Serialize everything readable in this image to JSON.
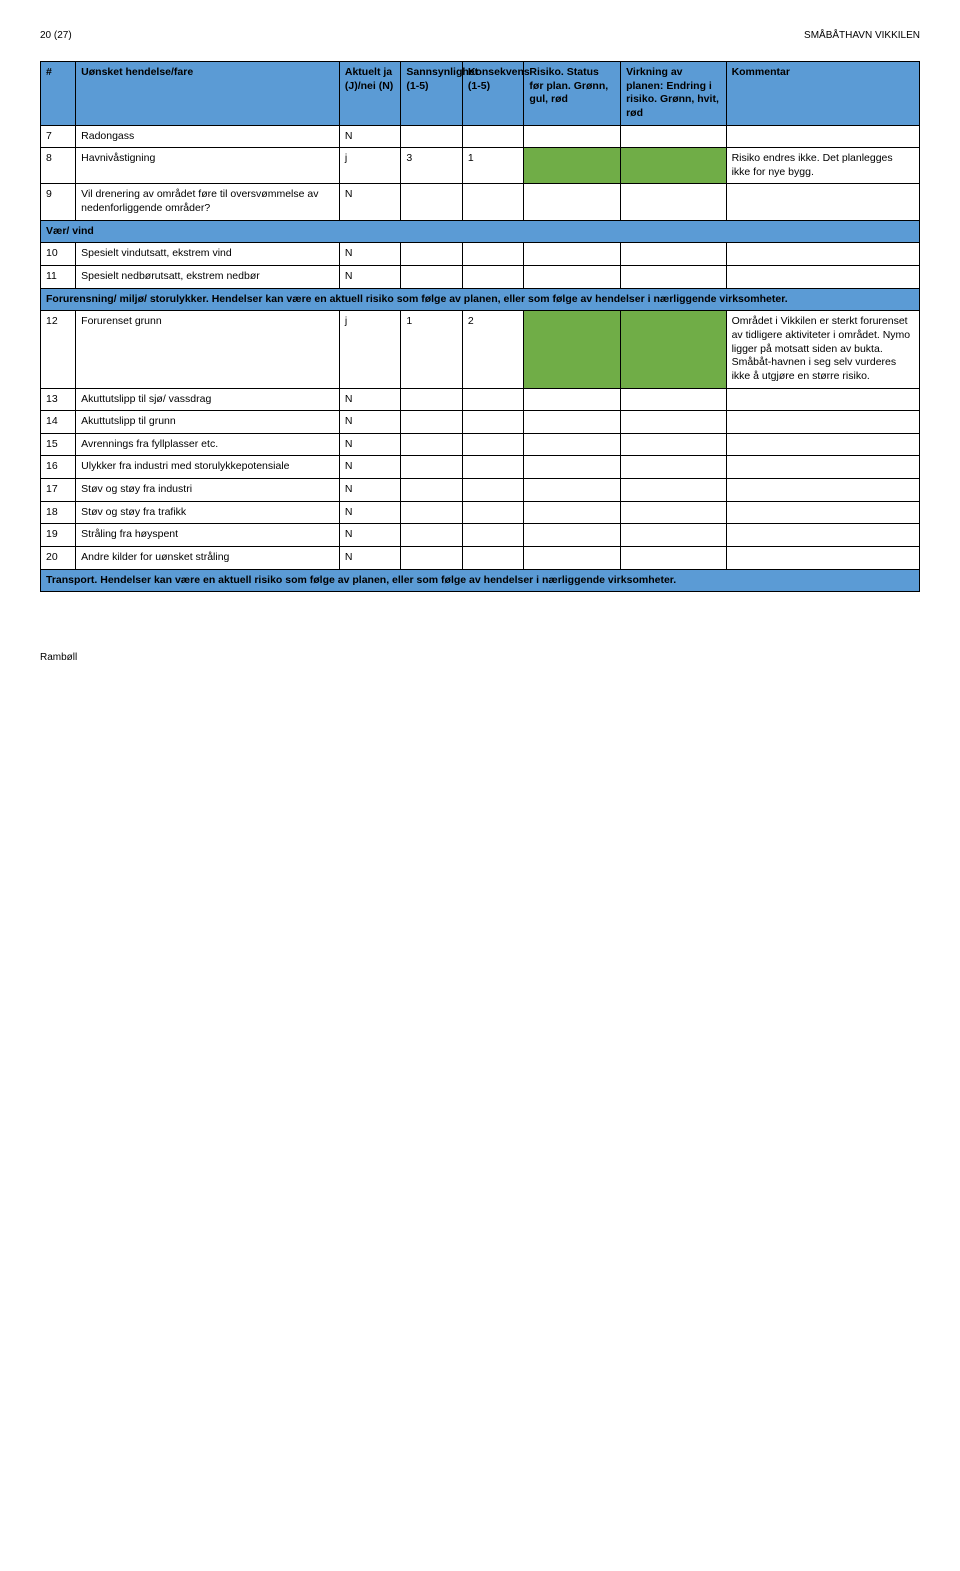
{
  "page": {
    "page_label": "20 (27)",
    "doc_title": "SMÅBÅTHAVN VIKKILEN",
    "footer": "Rambøll"
  },
  "columns": {
    "num": "#",
    "event": "Uønsket hendelse/fare",
    "aktu": "Aktuelt ja (J)/nei (N)",
    "sann": "Sannsynlighet (1-5)",
    "kons": "Konsekvens (1-5)",
    "risk": "Risiko. Status før plan. Grønn, gul, rød",
    "virk": "Virkning av planen: Endring i risiko. Grønn, hvit, rød",
    "komm": "Kommentar"
  },
  "colors": {
    "header_bg": "#5b9bd5",
    "green": "#70ad47",
    "border": "#000000",
    "page_bg": "#ffffff"
  },
  "rows": [
    {
      "type": "data",
      "num": "7",
      "event": "Radongass",
      "aktu": "N",
      "sann": "",
      "kons": "",
      "risk_color": "",
      "virk_color": "",
      "komm": ""
    },
    {
      "type": "data",
      "num": "8",
      "event": "Havnivåstigning",
      "aktu": "j",
      "sann": "3",
      "kons": "1",
      "risk_color": "green",
      "virk_color": "green",
      "komm": "Risiko endres ikke. Det planlegges ikke for nye bygg."
    },
    {
      "type": "data",
      "num": "9",
      "event": "Vil drenering av området føre til oversvømmelse av nedenforliggende områder?",
      "aktu": "N",
      "sann": "",
      "kons": "",
      "risk_color": "",
      "virk_color": "",
      "komm": ""
    },
    {
      "type": "section",
      "text": "Vær/ vind"
    },
    {
      "type": "data",
      "num": "10",
      "event": "Spesielt vindutsatt, ekstrem vind",
      "aktu": "N",
      "sann": "",
      "kons": "",
      "risk_color": "",
      "virk_color": "",
      "komm": ""
    },
    {
      "type": "data",
      "num": "11",
      "event": "Spesielt nedbørutsatt, ekstrem nedbør",
      "aktu": "N",
      "sann": "",
      "kons": "",
      "risk_color": "",
      "virk_color": "",
      "komm": ""
    },
    {
      "type": "section",
      "text": "Forurensning/ miljø/ storulykker. Hendelser kan være en aktuell risiko som følge av planen, eller som følge av hendelser i nærliggende virksomheter."
    },
    {
      "type": "data",
      "num": "12",
      "event": "Forurenset grunn",
      "aktu": "j",
      "sann": "1",
      "kons": "2",
      "risk_color": "green",
      "virk_color": "green",
      "komm": "Området i Vikkilen er sterkt forurenset av tidligere aktiviteter i området. Nymo ligger på motsatt siden av bukta. Småbåt-havnen i seg selv vurderes ikke å utgjøre en større risiko."
    },
    {
      "type": "data",
      "num": "13",
      "event": "Akuttutslipp til sjø/ vassdrag",
      "aktu": "N",
      "sann": "",
      "kons": "",
      "risk_color": "",
      "virk_color": "",
      "komm": ""
    },
    {
      "type": "data",
      "num": "14",
      "event": "Akuttutslipp til grunn",
      "aktu": "N",
      "sann": "",
      "kons": "",
      "risk_color": "",
      "virk_color": "",
      "komm": ""
    },
    {
      "type": "data",
      "num": "15",
      "event": "Avrennings fra fyllplasser etc.",
      "aktu": "N",
      "sann": "",
      "kons": "",
      "risk_color": "",
      "virk_color": "",
      "komm": ""
    },
    {
      "type": "data",
      "num": "16",
      "event": "Ulykker fra industri med storulykkepotensiale",
      "aktu": "N",
      "sann": "",
      "kons": "",
      "risk_color": "",
      "virk_color": "",
      "komm": ""
    },
    {
      "type": "data",
      "num": "17",
      "event": "Støv og støy fra industri",
      "aktu": "N",
      "sann": "",
      "kons": "",
      "risk_color": "",
      "virk_color": "",
      "komm": ""
    },
    {
      "type": "data",
      "num": "18",
      "event": "Støv og støy fra trafikk",
      "aktu": "N",
      "sann": "",
      "kons": "",
      "risk_color": "",
      "virk_color": "",
      "komm": ""
    },
    {
      "type": "data",
      "num": "19",
      "event": "Stråling fra høyspent",
      "aktu": "N",
      "sann": "",
      "kons": "",
      "risk_color": "",
      "virk_color": "",
      "komm": ""
    },
    {
      "type": "data",
      "num": "20",
      "event": "Andre kilder for uønsket stråling",
      "aktu": "N",
      "sann": "",
      "kons": "",
      "risk_color": "",
      "virk_color": "",
      "komm": ""
    },
    {
      "type": "section",
      "text": "Transport. Hendelser kan være en aktuell risiko som følge av planen, eller som følge av hendelser i nærliggende virksomheter."
    }
  ]
}
